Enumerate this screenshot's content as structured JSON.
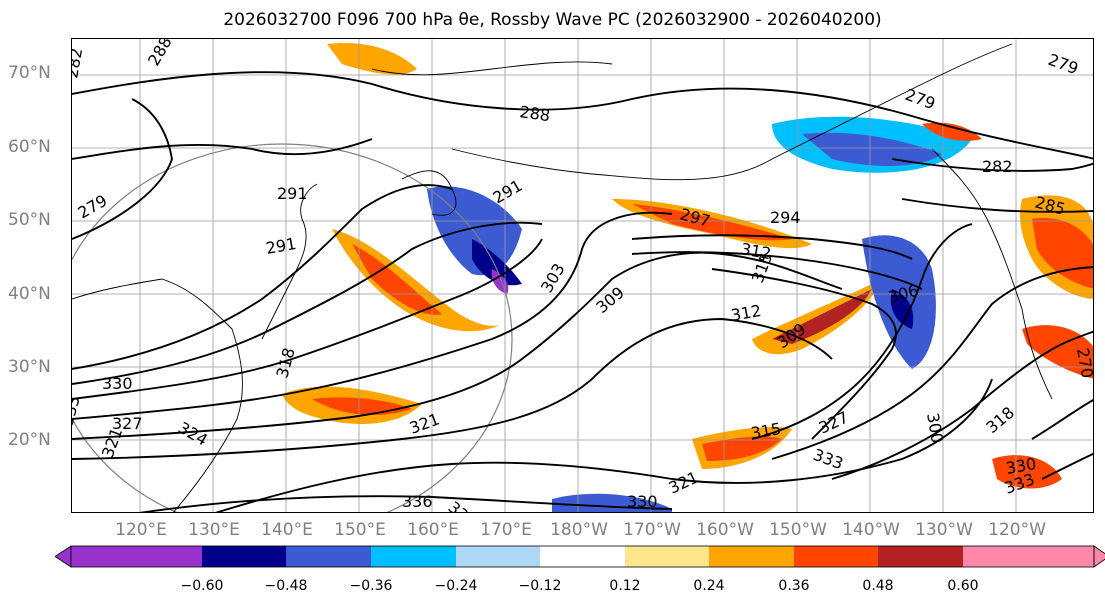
{
  "title": "2026032700 F096 700 hPa θe, Rossby Wave PC (2026032900 - 2026040200)",
  "latitude_labels": [
    "70°N",
    "60°N",
    "50°N",
    "40°N",
    "30°N",
    "20°N"
  ],
  "longitude_labels": [
    "120°E",
    "130°E",
    "140°E",
    "150°E",
    "160°E",
    "170°E",
    "180°W",
    "170°W",
    "160°W",
    "150°W",
    "140°W",
    "130°W",
    "120°W"
  ],
  "contour_labels": [
    "282",
    "288",
    "279",
    "291",
    "291",
    "288",
    "282",
    "285",
    "279",
    "297",
    "294",
    "312",
    "315",
    "303",
    "309",
    "312",
    "306",
    "309",
    "318",
    "321",
    "324",
    "330",
    "327",
    "333",
    "321",
    "336",
    "333",
    "330",
    "321",
    "315",
    "327",
    "333",
    "318",
    "330",
    "333",
    "300",
    "291",
    "279",
    "270"
  ],
  "colorbar": {
    "ticks": [
      "−0.60",
      "−0.48",
      "−0.36",
      "−0.24",
      "−0.12",
      "0.12",
      "0.24",
      "0.36",
      "0.48",
      "0.60"
    ],
    "colors": [
      "#9932cc",
      "#00008b",
      "#3c5ad2",
      "#00bfff",
      "#add8f5",
      "#ffffff",
      "#ffe68c",
      "#ffa500",
      "#ff4500",
      "#b22222",
      "#ff88aa"
    ]
  }
}
